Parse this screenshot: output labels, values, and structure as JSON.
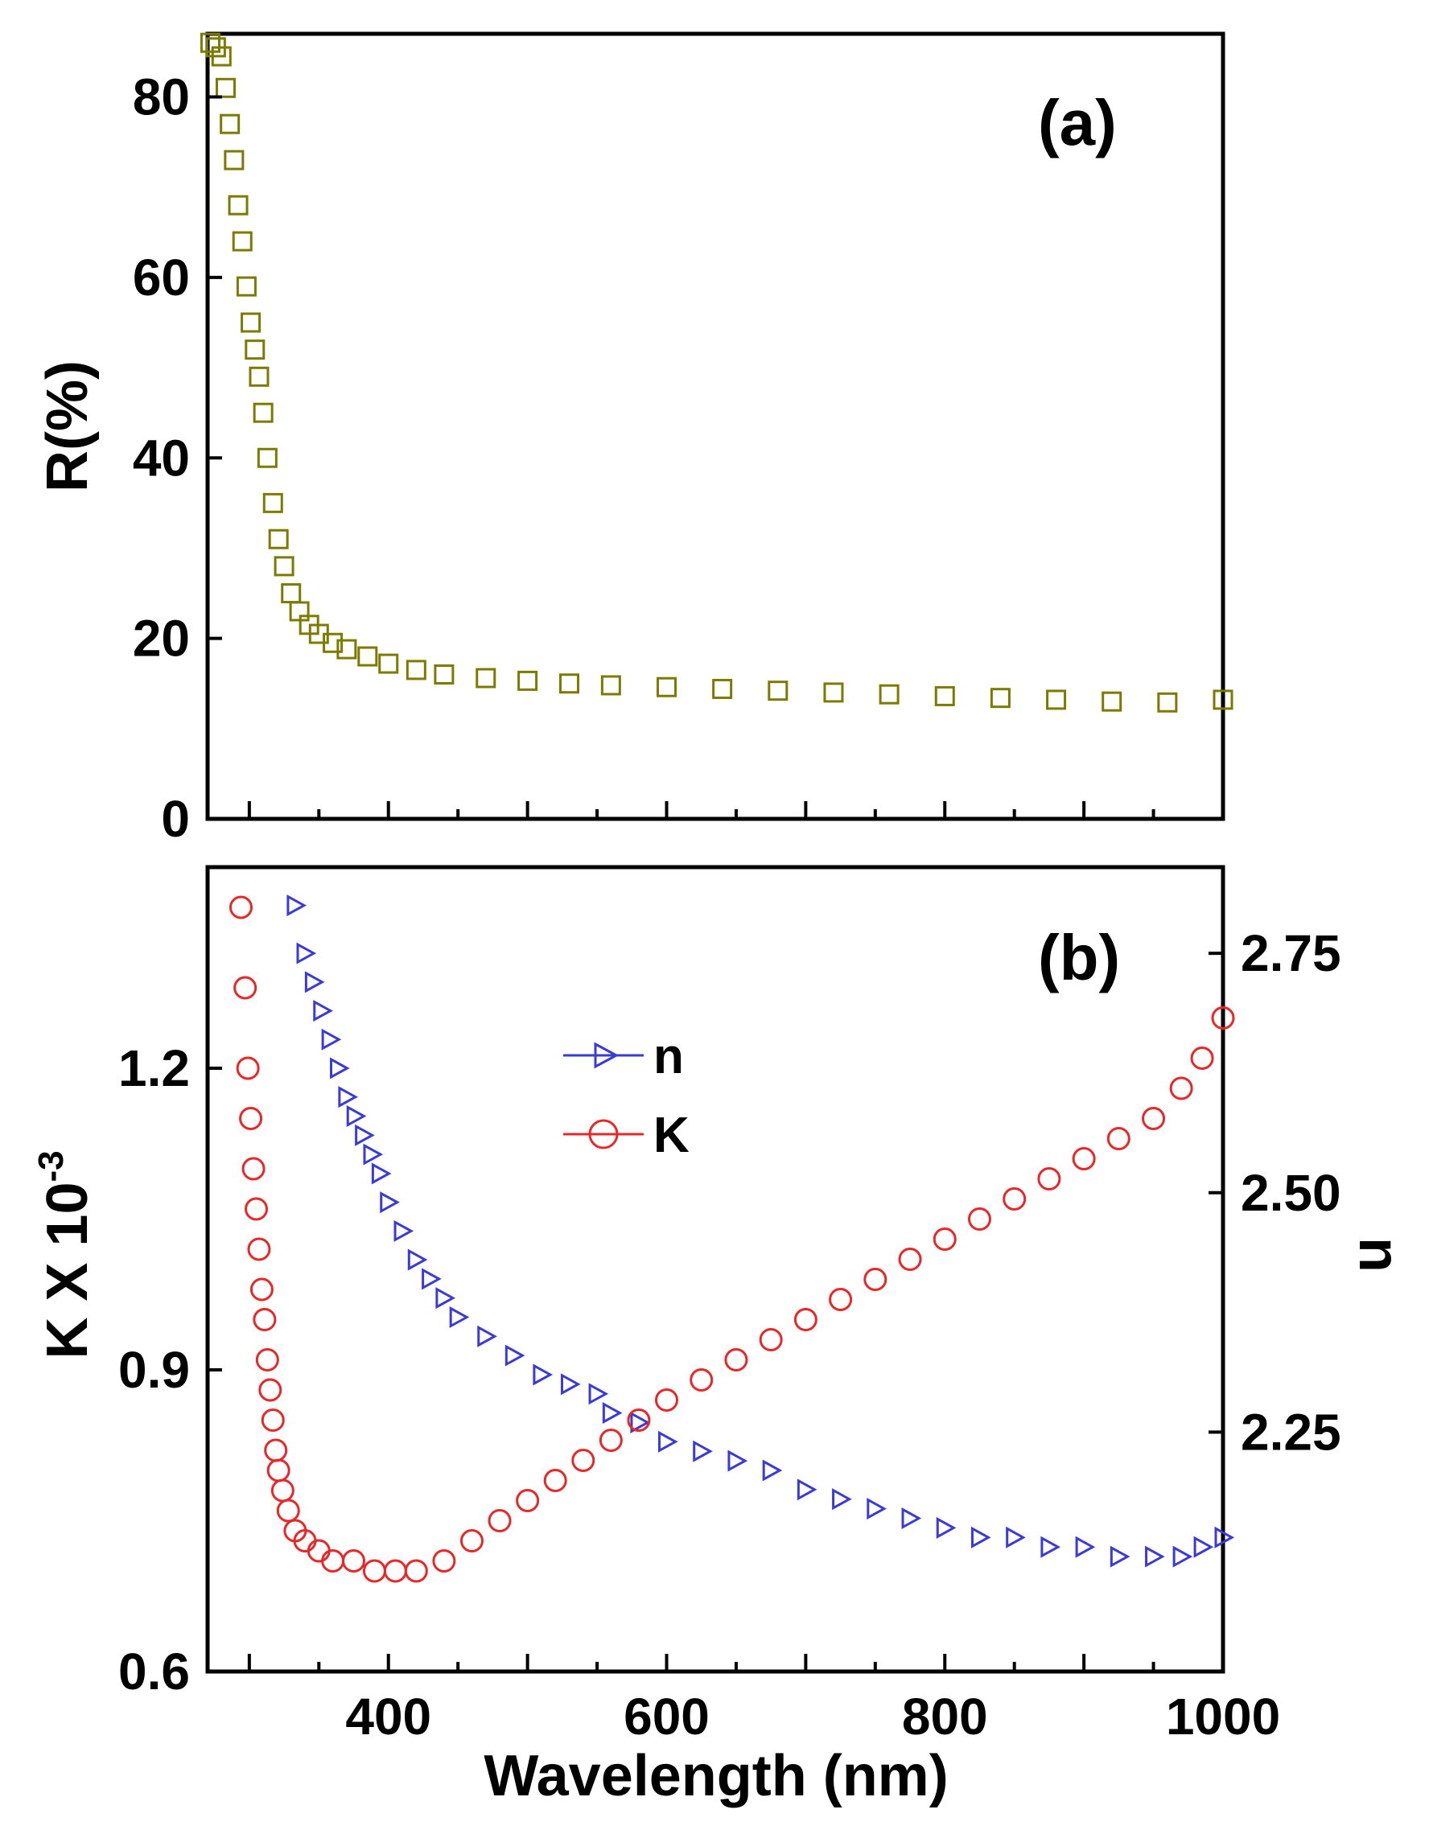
{
  "chart_data": [
    {
      "panel": "a",
      "type": "scatter",
      "panel_label": "(a)",
      "xlabel": "",
      "ylabel": "R(%)",
      "xlim": [
        270,
        1000
      ],
      "ylim": [
        0,
        87
      ],
      "yticks": [
        0,
        20,
        40,
        60,
        80
      ],
      "series": [
        {
          "name": "R",
          "marker": "square",
          "color": "#7d7a00",
          "x": [
            272,
            276,
            280,
            283,
            286,
            289,
            292,
            295,
            298,
            301,
            304,
            307,
            310,
            313,
            317,
            321,
            325,
            330,
            336,
            343,
            350,
            360,
            370,
            385,
            400,
            420,
            440,
            470,
            500,
            530,
            560,
            600,
            640,
            680,
            720,
            760,
            800,
            840,
            880,
            920,
            960,
            1000
          ],
          "y": [
            86,
            85.5,
            84.5,
            81,
            77,
            73,
            68,
            64,
            59,
            55,
            52,
            49,
            45,
            40,
            35,
            31,
            28,
            25,
            23,
            21.5,
            20.5,
            19.5,
            18.8,
            18,
            17.2,
            16.5,
            16,
            15.6,
            15.3,
            15,
            14.8,
            14.6,
            14.4,
            14.2,
            14,
            13.8,
            13.6,
            13.4,
            13.2,
            13,
            12.9,
            13.2
          ]
        }
      ]
    },
    {
      "panel": "b",
      "type": "scatter",
      "panel_label": "(b)",
      "xlabel": "Wavelength (nm)",
      "ylabel": "K X 10",
      "ylabel_exponent": "-3",
      "ylabel_right": "n",
      "xlim": [
        270,
        1000
      ],
      "xticks": [
        400,
        600,
        800,
        1000
      ],
      "ylim": [
        0.6,
        1.4
      ],
      "yticks": [
        0.6,
        0.9,
        1.2
      ],
      "ylim_right": [
        2.0,
        2.84
      ],
      "yticks_right": [
        2.25,
        2.5,
        2.75
      ],
      "legend": [
        {
          "label": "n",
          "marker": "triangle-right",
          "color": "#3a3ad6"
        },
        {
          "label": "K",
          "marker": "circle",
          "color": "#e82828"
        }
      ],
      "series": [
        {
          "name": "n",
          "axis": "right",
          "marker": "triangle-right",
          "color": "#3a3ad6",
          "x": [
            333,
            340,
            346,
            352,
            358,
            364,
            370,
            376,
            382,
            388,
            394,
            400,
            410,
            420,
            430,
            440,
            450,
            470,
            490,
            510,
            530,
            550,
            560,
            580,
            600,
            625,
            650,
            675,
            700,
            725,
            750,
            775,
            800,
            825,
            850,
            875,
            900,
            925,
            950,
            970,
            985,
            1000
          ],
          "y": [
            2.8,
            2.75,
            2.72,
            2.69,
            2.66,
            2.63,
            2.6,
            2.58,
            2.56,
            2.54,
            2.52,
            2.49,
            2.46,
            2.43,
            2.41,
            2.39,
            2.37,
            2.35,
            2.33,
            2.31,
            2.3,
            2.29,
            2.27,
            2.26,
            2.24,
            2.23,
            2.22,
            2.21,
            2.19,
            2.18,
            2.17,
            2.16,
            2.15,
            2.14,
            2.14,
            2.13,
            2.13,
            2.12,
            2.12,
            2.12,
            2.13,
            2.14
          ]
        },
        {
          "name": "K",
          "axis": "left",
          "marker": "circle",
          "color": "#e82828",
          "x": [
            294,
            297,
            299,
            301,
            303,
            305,
            307,
            309,
            311,
            313,
            315,
            317,
            319,
            321,
            324,
            328,
            333,
            340,
            350,
            360,
            375,
            390,
            405,
            420,
            440,
            460,
            480,
            500,
            520,
            540,
            560,
            580,
            600,
            625,
            650,
            675,
            700,
            725,
            750,
            775,
            800,
            825,
            850,
            875,
            900,
            925,
            950,
            970,
            985,
            1000
          ],
          "y": [
            1.36,
            1.28,
            1.2,
            1.15,
            1.1,
            1.06,
            1.02,
            0.98,
            0.95,
            0.91,
            0.88,
            0.85,
            0.82,
            0.8,
            0.78,
            0.76,
            0.74,
            0.73,
            0.72,
            0.71,
            0.71,
            0.7,
            0.7,
            0.7,
            0.71,
            0.73,
            0.75,
            0.77,
            0.79,
            0.81,
            0.83,
            0.85,
            0.87,
            0.89,
            0.91,
            0.93,
            0.95,
            0.97,
            0.99,
            1.01,
            1.03,
            1.05,
            1.07,
            1.09,
            1.11,
            1.13,
            1.15,
            1.18,
            1.21,
            1.25
          ]
        }
      ]
    }
  ]
}
